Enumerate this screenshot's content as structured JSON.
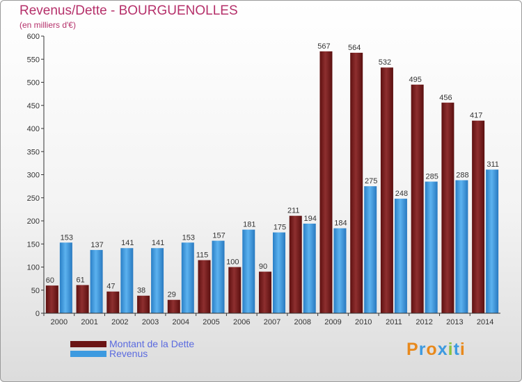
{
  "header": {
    "title": "Revenus/Dette - BOURGUENOLLES",
    "subtitle": "(en milliers d'€)"
  },
  "legend": {
    "debt_label": "Montant de la Dette",
    "revenue_label": "Revenus"
  },
  "logo": {
    "text": "Proxiti"
  },
  "colors": {
    "debt": "#7a1f1f",
    "revenue": "#3d9ae0",
    "title": "#b5306a",
    "legend_text": "#5a6adf"
  },
  "chart_data": {
    "type": "bar",
    "title": "Revenus/Dette - BOURGUENOLLES",
    "subtitle": "(en milliers d'€)",
    "categories": [
      "2000",
      "2001",
      "2002",
      "2003",
      "2004",
      "2005",
      "2006",
      "2007",
      "2008",
      "2009",
      "2010",
      "2011",
      "2012",
      "2013",
      "2014"
    ],
    "series": [
      {
        "name": "Montant de la Dette",
        "values": [
          60,
          61,
          47,
          38,
          29,
          115,
          100,
          90,
          211,
          567,
          564,
          532,
          495,
          456,
          417
        ]
      },
      {
        "name": "Revenus",
        "values": [
          153,
          137,
          141,
          141,
          153,
          157,
          181,
          175,
          194,
          184,
          275,
          248,
          285,
          288,
          311
        ]
      }
    ],
    "ylim": [
      0,
      600
    ],
    "yticks": [
      0,
      50,
      100,
      150,
      200,
      250,
      300,
      350,
      400,
      450,
      500,
      550,
      600
    ],
    "grid": false,
    "legend_position": "bottom-left",
    "data_labels": true
  }
}
